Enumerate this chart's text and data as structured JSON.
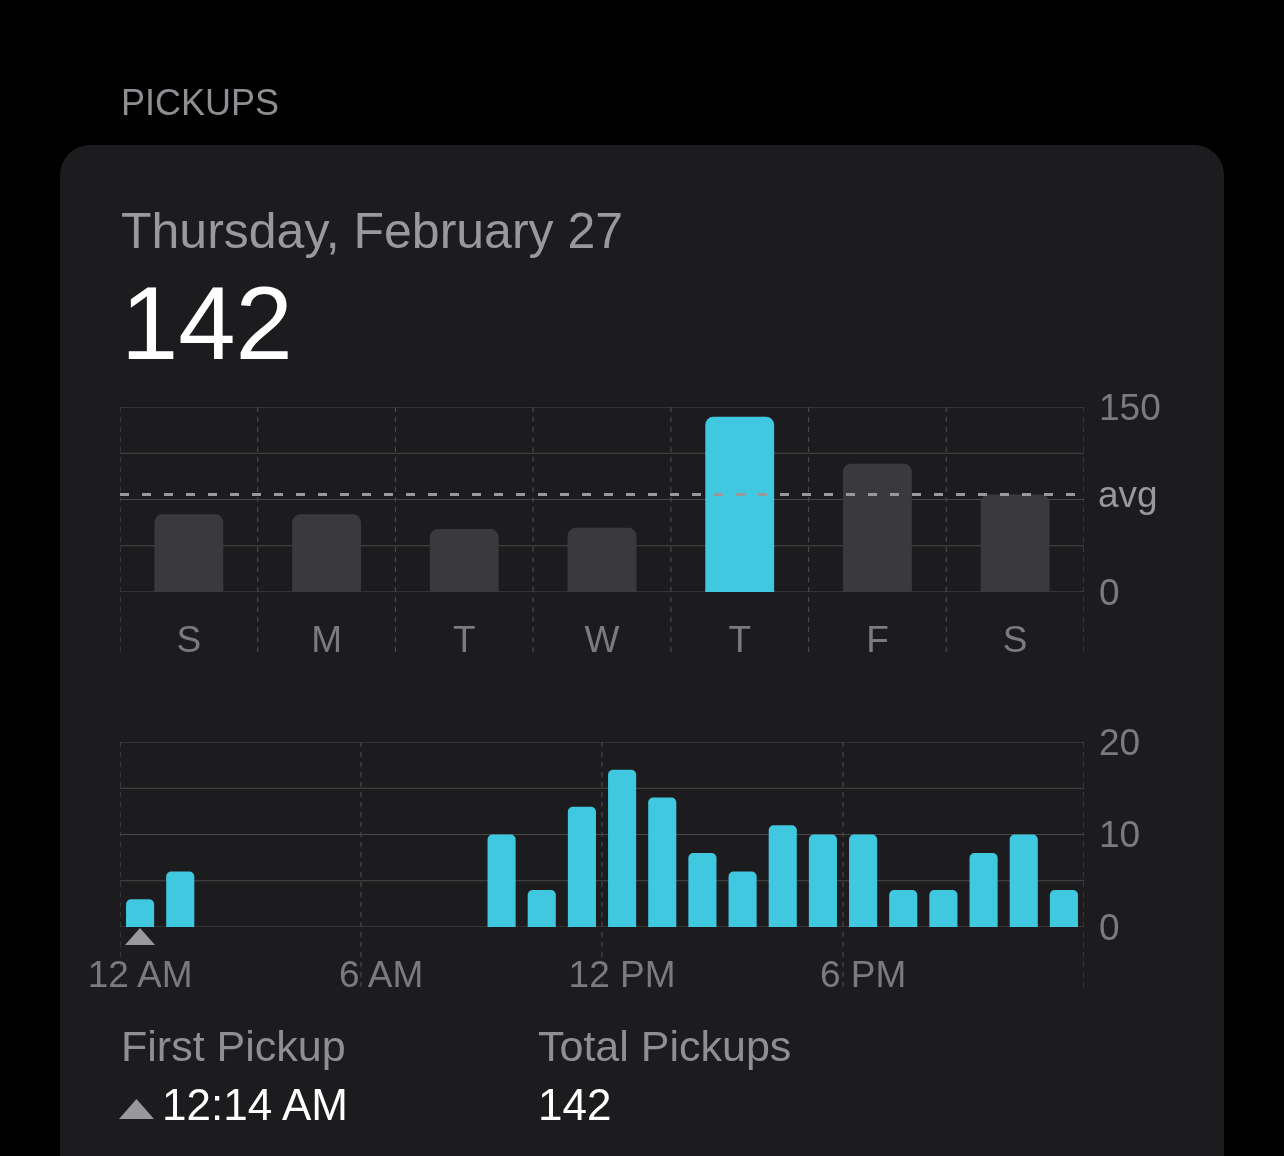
{
  "chart_data": [
    {
      "type": "bar",
      "title": "PICKUPS",
      "subtitle": "Thursday, February 27",
      "annotations": [
        "142"
      ],
      "categories": [
        "S",
        "M",
        "T",
        "W",
        "T",
        "F",
        "S"
      ],
      "values": [
        63,
        63,
        51,
        52,
        142,
        104,
        79
      ],
      "colors": [
        "#3a3a3c",
        "#3a3a3c",
        "#3a3a3c",
        "#3a3a3c",
        "#40c8e0",
        "#3a3a3c",
        "#3a3a3c"
      ],
      "ylim": [
        0,
        150
      ],
      "yticks": [
        0,
        {
          "value": 37.5,
          "label": null
        },
        {
          "value": 75,
          "label": null
        },
        {
          "value": 112.5,
          "label": null
        },
        150
      ],
      "ref_lines": [
        {
          "axis": "y",
          "value": 79,
          "label": "avg",
          "color": "#98989d",
          "line_style": "dashed"
        }
      ],
      "grid": true
    },
    {
      "type": "bar",
      "categories": [
        "12 AM",
        null,
        null,
        null,
        null,
        null,
        "6 AM",
        null,
        null,
        null,
        null,
        null,
        "12 PM",
        null,
        null,
        null,
        null,
        null,
        "6 PM",
        null,
        null,
        null,
        null,
        null
      ],
      "values": [
        3,
        6,
        null,
        null,
        null,
        null,
        null,
        null,
        null,
        10,
        4,
        13,
        17,
        14,
        8,
        6,
        11,
        10,
        10,
        4,
        4,
        8,
        10,
        4
      ],
      "color": "#40c8e0",
      "ylim": [
        0,
        20
      ],
      "yticks": [
        0,
        {
          "value": 5,
          "label": null
        },
        10,
        {
          "value": 15,
          "label": null
        },
        20
      ],
      "grid": true
    },
    {
      "type": "other",
      "annotations": [
        "First Pickup",
        "12:14 AM",
        "Total Pickups",
        "142"
      ]
    }
  ]
}
